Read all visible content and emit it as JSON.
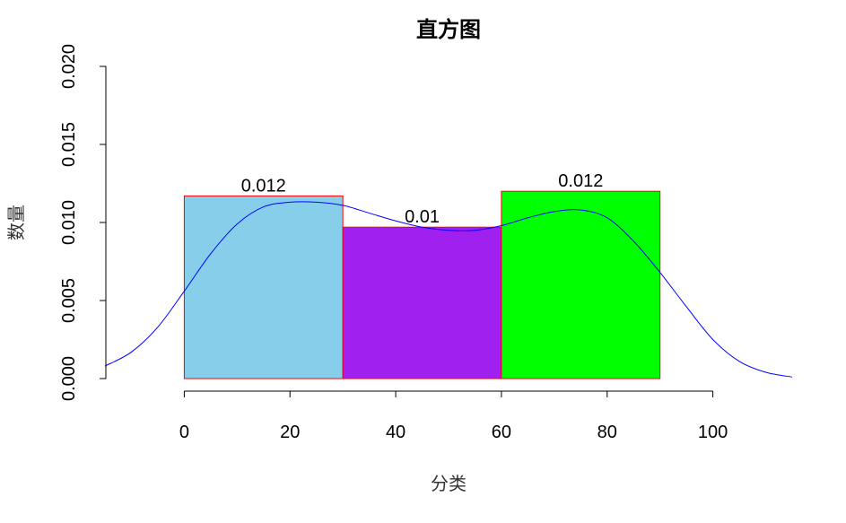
{
  "chart_data": {
    "type": "bar",
    "title": "直方图",
    "xlabel": "分类",
    "ylabel": "数量",
    "bins": [
      {
        "start": 0,
        "end": 30,
        "value": 0.0117,
        "label": "0.012",
        "color": "#87CEEB"
      },
      {
        "start": 30,
        "end": 60,
        "value": 0.0097,
        "label": "0.01",
        "color": "#A020F0"
      },
      {
        "start": 60,
        "end": 90,
        "value": 0.012,
        "label": "0.012",
        "color": "#00FF00"
      }
    ],
    "bar_border_color": "#FF0000",
    "xlim": [
      -15,
      115
    ],
    "ylim": [
      0,
      0.02
    ],
    "xticks": [
      0,
      20,
      40,
      60,
      80,
      100
    ],
    "xtick_labels": [
      "0",
      "20",
      "40",
      "60",
      "80",
      "100"
    ],
    "yticks": [
      0,
      0.005,
      0.01,
      0.015,
      0.02
    ],
    "ytick_labels": [
      "0.000",
      "0.005",
      "0.010",
      "0.015",
      "0.020"
    ],
    "density": {
      "color": "#0000FF",
      "x": [
        -15,
        -10,
        -5,
        0,
        5,
        10,
        15,
        20,
        25,
        30,
        35,
        40,
        45,
        50,
        55,
        60,
        65,
        70,
        75,
        80,
        85,
        90,
        95,
        100,
        105,
        110,
        115
      ],
      "y": [
        0.0008,
        0.0017,
        0.0033,
        0.0056,
        0.008,
        0.0099,
        0.011,
        0.0113,
        0.0113,
        0.0111,
        0.0106,
        0.0101,
        0.0097,
        0.0095,
        0.0095,
        0.0098,
        0.0103,
        0.0107,
        0.0108,
        0.0103,
        0.0088,
        0.0068,
        0.0046,
        0.0025,
        0.0011,
        0.0004,
        0.0001
      ]
    }
  }
}
